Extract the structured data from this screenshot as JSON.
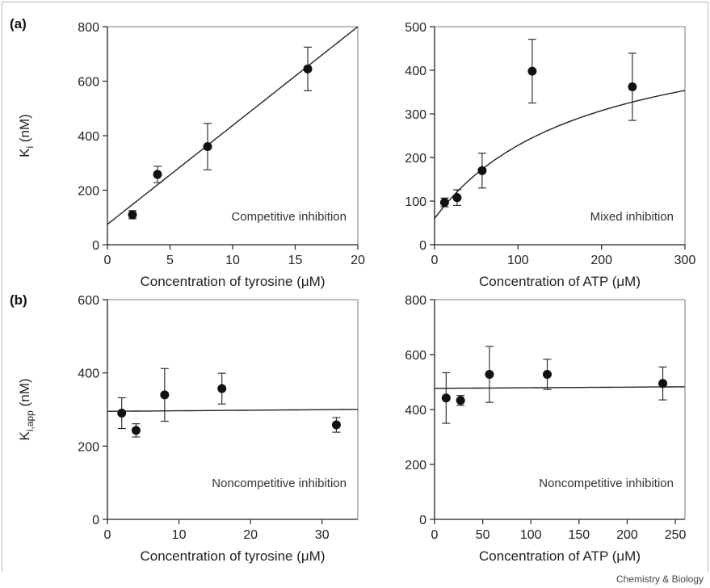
{
  "figure": {
    "panel_labels": [
      "(a)",
      "(b)"
    ],
    "credit": "Chemistry & Biology"
  },
  "chart_data": [
    {
      "type": "scatter",
      "panel": "(a)",
      "annotation": "Competitive inhibition",
      "xlabel": "Concentration of tyrosine (μM)",
      "ylabel": "K_i (nM)",
      "ylabel_main": "K",
      "ylabel_sub": "i",
      "ylabel_rest": " (nM)",
      "xlim": [
        0,
        20
      ],
      "ylim": [
        0,
        800
      ],
      "xticks": [
        0,
        5,
        10,
        15,
        20
      ],
      "yticks": [
        0,
        200,
        400,
        600,
        800
      ],
      "points": [
        {
          "x": 2,
          "y": 110,
          "err": 15
        },
        {
          "x": 4,
          "y": 258,
          "err": 30
        },
        {
          "x": 8,
          "y": 360,
          "err": 85
        },
        {
          "x": 16,
          "y": 645,
          "err": 80
        }
      ],
      "fit": {
        "kind": "linear",
        "intercept": 75,
        "slope": 36.25
      }
    },
    {
      "type": "scatter",
      "panel": "(a)",
      "annotation": "Mixed inhibition",
      "xlabel": "Concentration of ATP (μM)",
      "ylabel": "",
      "xlim": [
        0,
        300
      ],
      "ylim": [
        0,
        500
      ],
      "xticks": [
        0,
        100,
        200,
        300
      ],
      "yticks": [
        0,
        100,
        200,
        300,
        400,
        500
      ],
      "points": [
        {
          "x": 12,
          "y": 97,
          "err": 10
        },
        {
          "x": 27,
          "y": 108,
          "err": 18
        },
        {
          "x": 57,
          "y": 170,
          "err": 40
        },
        {
          "x": 117,
          "y": 398,
          "err": 73
        },
        {
          "x": 237,
          "y": 362,
          "err": 77
        }
      ],
      "fit": {
        "kind": "saturating",
        "y0": 60,
        "ymax": 530,
        "k": 180
      }
    },
    {
      "type": "scatter",
      "panel": "(b)",
      "annotation": "Noncompetitive inhibition",
      "xlabel": "Concentration of tyrosine (μM)",
      "ylabel": "K_i,app (nM)",
      "ylabel_main": "K",
      "ylabel_sub": "i,app",
      "ylabel_rest": " (nM)",
      "xlim": [
        0,
        35
      ],
      "ylim": [
        0,
        600
      ],
      "xticks": [
        0,
        10,
        20,
        30
      ],
      "yticks": [
        0,
        200,
        400,
        600
      ],
      "points": [
        {
          "x": 2,
          "y": 290,
          "err": 42
        },
        {
          "x": 4,
          "y": 243,
          "err": 18
        },
        {
          "x": 8,
          "y": 340,
          "err": 72
        },
        {
          "x": 16,
          "y": 357,
          "err": 42
        },
        {
          "x": 32,
          "y": 258,
          "err": 20
        }
      ],
      "fit": {
        "kind": "linear",
        "intercept": 295,
        "slope": 0.15
      }
    },
    {
      "type": "scatter",
      "panel": "(b)",
      "annotation": "Noncompetitive inhibition",
      "xlabel": "Concentration of ATP (μM)",
      "ylabel": "",
      "xlim": [
        0,
        260
      ],
      "ylim": [
        0,
        800
      ],
      "xticks": [
        0,
        50,
        100,
        150,
        200,
        250
      ],
      "yticks": [
        0,
        200,
        400,
        600,
        800
      ],
      "points": [
        {
          "x": 12,
          "y": 442,
          "err": 92
        },
        {
          "x": 27,
          "y": 433,
          "err": 18
        },
        {
          "x": 57,
          "y": 528,
          "err": 102
        },
        {
          "x": 117,
          "y": 528,
          "err": 55
        },
        {
          "x": 237,
          "y": 495,
          "err": 60
        }
      ],
      "fit": {
        "kind": "linear",
        "intercept": 477,
        "slope": 0.022
      }
    }
  ]
}
